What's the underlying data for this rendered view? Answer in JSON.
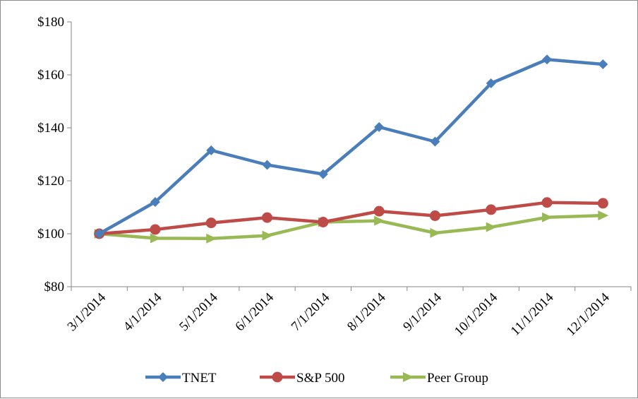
{
  "chart_data": {
    "type": "line",
    "title": "",
    "xlabel": "",
    "ylabel": "",
    "categories": [
      "3/1/2014",
      "4/1/2014",
      "5/1/2014",
      "6/1/2014",
      "7/1/2014",
      "8/1/2014",
      "9/1/2014",
      "10/1/2014",
      "11/1/2014",
      "12/1/2014"
    ],
    "ylim": [
      80,
      180
    ],
    "yticks": [
      80,
      100,
      120,
      140,
      160,
      180
    ],
    "ytick_labels": [
      "$80",
      "$100",
      "$120",
      "$140",
      "$160",
      "$180"
    ],
    "grid": false,
    "legend_position": "bottom",
    "series": [
      {
        "name": "TNET",
        "color": "#4a7ebb",
        "marker": "diamond",
        "values": [
          100,
          112,
          131.5,
          126,
          122.5,
          140.3,
          134.8,
          156.8,
          165.8,
          164
        ]
      },
      {
        "name": "S&P 500",
        "color": "#be4b48",
        "marker": "circle",
        "values": [
          100,
          101.6,
          104.1,
          106.1,
          104.4,
          108.5,
          106.8,
          109.1,
          111.8,
          111.5
        ]
      },
      {
        "name": "Peer Group",
        "color": "#98b954",
        "marker": "arrow",
        "values": [
          100,
          98.3,
          98.2,
          99.3,
          104.4,
          104.9,
          100.3,
          102.5,
          106.2,
          106.9
        ]
      }
    ]
  }
}
